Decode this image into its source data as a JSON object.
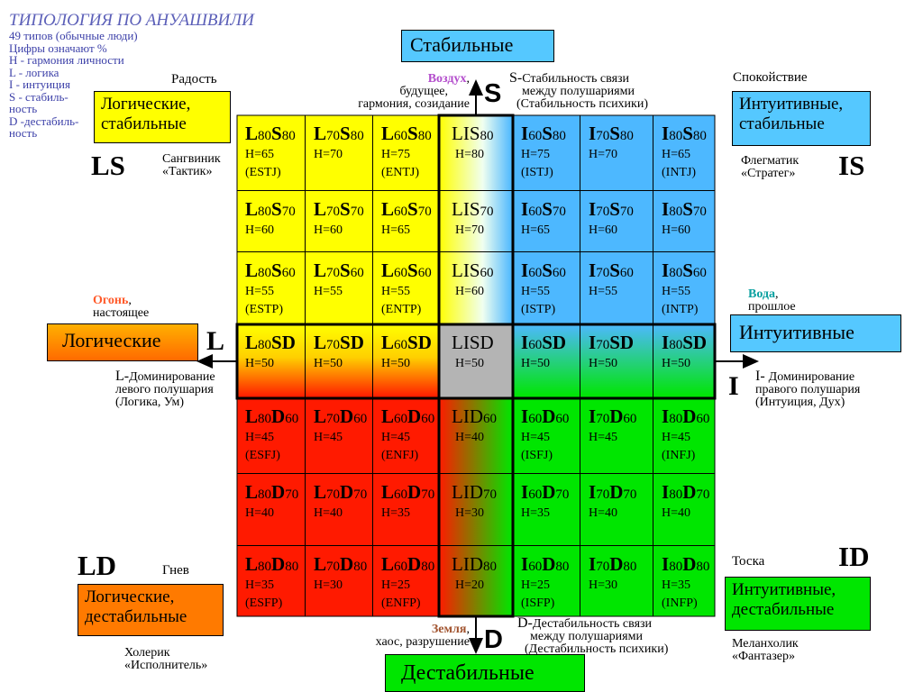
{
  "legend": {
    "title": "ТИПОЛОГИЯ ПО АНУАШВИЛИ",
    "lines": [
      "49 типов (обычные люди)",
      "Цифры означают %",
      "H - гармония личности",
      "L - логика",
      "I -  интуиция",
      "S - стабиль-",
      "       ность",
      "D -дестабиль-",
      "       ность"
    ]
  },
  "top_box": "Стабильные",
  "bottom_box": "Дестабильные",
  "quadrants": {
    "ls": {
      "box_lines": [
        "Логические,",
        "стабильные"
      ],
      "emotion": "Радость",
      "code": "LS",
      "temperament": [
        "Сангвиник",
        "«Тактик»"
      ]
    },
    "is": {
      "box_lines": [
        "Интуитивные,",
        "стабильные"
      ],
      "emotion": "Спокойствие",
      "code": "IS",
      "temperament": [
        "Флегматик",
        "«Стратег»"
      ]
    },
    "ld": {
      "box_lines": [
        "Логические,",
        "дестабильные"
      ],
      "emotion": "Гнев",
      "code": "LD",
      "temperament": [
        "Холерик",
        "«Исполнитель»"
      ]
    },
    "id": {
      "box_lines": [
        "Интуитивные,",
        "дестабильные"
      ],
      "emotion": "Тоска",
      "code": "ID",
      "temperament": [
        "Меланхолик",
        "«Фантазер»"
      ]
    }
  },
  "left_box": "Логические",
  "right_box": "Интуитивные",
  "elements": {
    "air": {
      "name": "Воздух",
      "rest": ",",
      "lines": [
        "будущее,",
        "гармония, созидание"
      ]
    },
    "fire": {
      "name": "Огонь",
      "rest": ",",
      "lines": [
        "настоящее"
      ]
    },
    "water": {
      "name": "Вода",
      "rest": ",",
      "lines": [
        "прошлое"
      ]
    },
    "earth": {
      "name": "Земля",
      "rest": ",",
      "lines": [
        "хаос, разрушение"
      ]
    }
  },
  "axes": {
    "s": {
      "letter": "S",
      "prefix": "S-",
      "lines": [
        "Стабильность связи",
        "между полушариями",
        "(Стабильность психики)"
      ]
    },
    "d": {
      "letter": "D",
      "prefix": "D-",
      "lines": [
        "Дестабильность связи",
        "между полушариями",
        "(Дестабильность психики)"
      ]
    },
    "l": {
      "letter": "L",
      "prefix": "L-",
      "lines": [
        "Доминирование",
        "левого полушария",
        "(Логика, Ум)"
      ]
    },
    "i": {
      "letter": "I",
      "prefix": "I- ",
      "lines": [
        "Доминирование",
        "правого полушария",
        "(Интуиция, Дух)"
      ]
    }
  },
  "colors": {
    "yellow": "#ffff00",
    "blue": "#4db8ff",
    "red": "#ff1a00",
    "green": "#00e600",
    "gray": "#b4b4b4",
    "orange": "#ff7a00",
    "lightblue": "#55c8ff",
    "purple": "#b34dcc",
    "fire": "#ff5a2a",
    "water": "#0aa0a0",
    "earth": "#a0522d"
  },
  "grid": {
    "rows": [
      [
        {
          "a": "L",
          "an": "80",
          "b": "S",
          "bn": "80",
          "h": "H=65",
          "t": "(ESTJ)"
        },
        {
          "a": "L",
          "an": "70",
          "b": "S",
          "bn": "80",
          "h": "H=70",
          "t": ""
        },
        {
          "a": "L",
          "an": "60",
          "b": "S",
          "bn": "80",
          "h": "H=75",
          "t": "(ENTJ)"
        },
        {
          "a": "LIS",
          "an": "",
          "b": "",
          "bn": "80",
          "h": "H=80",
          "t": ""
        },
        {
          "a": "I",
          "an": "60",
          "b": "S",
          "bn": "80",
          "h": "H=75",
          "t": "(ISTJ)"
        },
        {
          "a": "I",
          "an": "70",
          "b": "S",
          "bn": "80",
          "h": "H=70",
          "t": ""
        },
        {
          "a": "I",
          "an": "80",
          "b": "S",
          "bn": "80",
          "h": "H=65",
          "t": "(INTJ)"
        }
      ],
      [
        {
          "a": "L",
          "an": "80",
          "b": "S",
          "bn": "70",
          "h": "H=60",
          "t": ""
        },
        {
          "a": "L",
          "an": "70",
          "b": "S",
          "bn": "70",
          "h": "H=60",
          "t": ""
        },
        {
          "a": "L",
          "an": "60",
          "b": "S",
          "bn": "70",
          "h": "H=65",
          "t": ""
        },
        {
          "a": "LIS",
          "an": "",
          "b": "",
          "bn": "70",
          "h": "H=70",
          "t": ""
        },
        {
          "a": "I",
          "an": "60",
          "b": "S",
          "bn": "70",
          "h": "H=65",
          "t": ""
        },
        {
          "a": "I",
          "an": "70",
          "b": "S",
          "bn": "70",
          "h": "H=60",
          "t": ""
        },
        {
          "a": "I",
          "an": "80",
          "b": "S",
          "bn": "70",
          "h": "H=60",
          "t": ""
        }
      ],
      [
        {
          "a": "L",
          "an": "80",
          "b": "S",
          "bn": "60",
          "h": "H=55",
          "t": "(ESTP)"
        },
        {
          "a": "L",
          "an": "70",
          "b": "S",
          "bn": "60",
          "h": "H=55",
          "t": ""
        },
        {
          "a": "L",
          "an": "60",
          "b": "S",
          "bn": "60",
          "h": "H=55",
          "t": "(ENTP)"
        },
        {
          "a": "LIS",
          "an": "",
          "b": "",
          "bn": "60",
          "h": "H=60",
          "t": ""
        },
        {
          "a": "I",
          "an": "60",
          "b": "S",
          "bn": "60",
          "h": "H=55",
          "t": "(ISTP)"
        },
        {
          "a": "I",
          "an": "70",
          "b": "S",
          "bn": "60",
          "h": "H=55",
          "t": ""
        },
        {
          "a": "I",
          "an": "80",
          "b": "S",
          "bn": "60",
          "h": "H=55",
          "t": "(INTP)"
        }
      ],
      [
        {
          "a": "L",
          "an": "80",
          "b": "SD",
          "bn": "",
          "h": "H=50",
          "t": ""
        },
        {
          "a": "L",
          "an": "70",
          "b": "SD",
          "bn": "",
          "h": "H=50",
          "t": ""
        },
        {
          "a": "L",
          "an": "60",
          "b": "SD",
          "bn": "",
          "h": "H=50",
          "t": ""
        },
        {
          "a": "LISD",
          "an": "",
          "b": "",
          "bn": "",
          "h": "H=50",
          "t": ""
        },
        {
          "a": "I",
          "an": "60",
          "b": "SD",
          "bn": "",
          "h": "H=50",
          "t": ""
        },
        {
          "a": "I",
          "an": "70",
          "b": "SD",
          "bn": "",
          "h": "H=50",
          "t": ""
        },
        {
          "a": "I",
          "an": "80",
          "b": "SD",
          "bn": "",
          "h": "H=50",
          "t": ""
        }
      ],
      [
        {
          "a": "L",
          "an": "80",
          "b": "D",
          "bn": "60",
          "h": "H=45",
          "t": "(ESFJ)"
        },
        {
          "a": "L",
          "an": "70",
          "b": "D",
          "bn": "60",
          "h": "H=45",
          "t": ""
        },
        {
          "a": "L",
          "an": "60",
          "b": "D",
          "bn": "60",
          "h": "H=45",
          "t": "(ENFJ)"
        },
        {
          "a": "LID",
          "an": "",
          "b": "",
          "bn": "60",
          "h": "H=40",
          "t": ""
        },
        {
          "a": "I",
          "an": "60",
          "b": "D",
          "bn": "60",
          "h": "H=45",
          "t": "(ISFJ)"
        },
        {
          "a": "I",
          "an": "70",
          "b": "D",
          "bn": "60",
          "h": "H=45",
          "t": ""
        },
        {
          "a": "I",
          "an": "80",
          "b": "D",
          "bn": "60",
          "h": "H=45",
          "t": "(INFJ)"
        }
      ],
      [
        {
          "a": "L",
          "an": "80",
          "b": "D",
          "bn": "70",
          "h": "H=40",
          "t": ""
        },
        {
          "a": "L",
          "an": "70",
          "b": "D",
          "bn": "70",
          "h": "H=40",
          "t": ""
        },
        {
          "a": "L",
          "an": "60",
          "b": "D",
          "bn": "70",
          "h": "H=35",
          "t": ""
        },
        {
          "a": "LID",
          "an": "",
          "b": "",
          "bn": "70",
          "h": "H=30",
          "t": ""
        },
        {
          "a": "I",
          "an": "60",
          "b": "D",
          "bn": "70",
          "h": "H=35",
          "t": ""
        },
        {
          "a": "I",
          "an": "70",
          "b": "D",
          "bn": "70",
          "h": "H=40",
          "t": ""
        },
        {
          "a": "I",
          "an": "80",
          "b": "D",
          "bn": "70",
          "h": "H=40",
          "t": ""
        }
      ],
      [
        {
          "a": "L",
          "an": "80",
          "b": "D",
          "bn": "80",
          "h": "H=35",
          "t": "(ESFP)"
        },
        {
          "a": "L",
          "an": "70",
          "b": "D",
          "bn": "80",
          "h": "H=30",
          "t": ""
        },
        {
          "a": "L",
          "an": "60",
          "b": "D",
          "bn": "80",
          "h": "H=25",
          "t": "(ENFP)"
        },
        {
          "a": "LID",
          "an": "",
          "b": "",
          "bn": "80",
          "h": "H=20",
          "t": ""
        },
        {
          "a": "I",
          "an": "60",
          "b": "D",
          "bn": "80",
          "h": "H=25",
          "t": "(ISFP)"
        },
        {
          "a": "I",
          "an": "70",
          "b": "D",
          "bn": "80",
          "h": "H=30",
          "t": ""
        },
        {
          "a": "I",
          "an": "80",
          "b": "D",
          "bn": "80",
          "h": "H=35",
          "t": "(INFP)"
        }
      ]
    ]
  }
}
